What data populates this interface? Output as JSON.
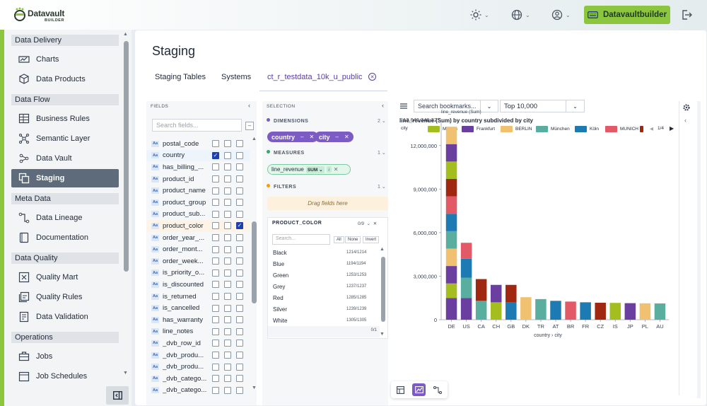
{
  "header": {
    "logo_text": "Datavault",
    "logo_sub": "BUILDER",
    "product_button": "Datavaultbuilder",
    "icons": [
      "sun-icon",
      "globe-icon",
      "user-icon",
      "keyboard-icon",
      "logout-icon"
    ]
  },
  "sidebar": {
    "sections": [
      {
        "title": "Data Delivery",
        "items": [
          {
            "label": "Charts",
            "icon": "chart-icon"
          },
          {
            "label": "Data Products",
            "icon": "box-icon"
          }
        ]
      },
      {
        "title": "Data Flow",
        "items": [
          {
            "label": "Business Rules",
            "icon": "table-icon"
          },
          {
            "label": "Semantic Layer",
            "icon": "network-icon"
          },
          {
            "label": "Data Vault",
            "icon": "vault-icon"
          },
          {
            "label": "Staging",
            "icon": "copy-icon",
            "active": true
          }
        ]
      },
      {
        "title": "Meta Data",
        "items": [
          {
            "label": "Data Lineage",
            "icon": "lineage-icon"
          },
          {
            "label": "Documentation",
            "icon": "book-icon"
          }
        ]
      },
      {
        "title": "Data Quality",
        "items": [
          {
            "label": "Quality Mart",
            "icon": "mart-icon"
          },
          {
            "label": "Quality Rules",
            "icon": "rules-icon"
          },
          {
            "label": "Data Validation",
            "icon": "validation-icon"
          }
        ]
      },
      {
        "title": "Operations",
        "items": [
          {
            "label": "Jobs",
            "icon": "jobs-icon"
          },
          {
            "label": "Job Schedules",
            "icon": "schedule-icon"
          }
        ]
      }
    ]
  },
  "page": {
    "title": "Staging",
    "tabs": [
      "Staging Tables",
      "Systems",
      "ct_r_testdata_10k_u_public"
    ],
    "active_tab": 2
  },
  "fields": {
    "header": "FIELDS",
    "search_placeholder": "Search fields...",
    "type_badge": "Aa",
    "rows": [
      {
        "name": "postal_code",
        "dim": false,
        "mea": false,
        "fil": false
      },
      {
        "name": "country",
        "dim": true,
        "mea": false,
        "fil": false
      },
      {
        "name": "has_billing_...",
        "dim": false,
        "mea": false,
        "fil": false
      },
      {
        "name": "product_id",
        "dim": false,
        "mea": false,
        "fil": false
      },
      {
        "name": "product_name",
        "dim": false,
        "mea": false,
        "fil": false
      },
      {
        "name": "product_group",
        "dim": false,
        "mea": false,
        "fil": false
      },
      {
        "name": "product_sub...",
        "dim": false,
        "mea": false,
        "fil": false
      },
      {
        "name": "product_color",
        "dim": false,
        "mea": false,
        "fil": true
      },
      {
        "name": "order_year_...",
        "dim": false,
        "mea": false,
        "fil": false
      },
      {
        "name": "order_mont...",
        "dim": false,
        "mea": false,
        "fil": false
      },
      {
        "name": "order_week...",
        "dim": false,
        "mea": false,
        "fil": false
      },
      {
        "name": "is_priority_o...",
        "dim": false,
        "mea": false,
        "fil": false
      },
      {
        "name": "is_discounted",
        "dim": false,
        "mea": false,
        "fil": false
      },
      {
        "name": "is_returned",
        "dim": false,
        "mea": false,
        "fil": false
      },
      {
        "name": "is_cancelled",
        "dim": false,
        "mea": false,
        "fil": false
      },
      {
        "name": "has_warranty",
        "dim": false,
        "mea": false,
        "fil": false
      },
      {
        "name": "line_notes",
        "dim": false,
        "mea": false,
        "fil": false
      },
      {
        "name": "_dvb_row_id",
        "dim": false,
        "mea": false,
        "fil": false
      },
      {
        "name": "_dvb_produ...",
        "dim": false,
        "mea": false,
        "fil": false
      },
      {
        "name": "_dvb_produ...",
        "dim": false,
        "mea": false,
        "fil": false
      },
      {
        "name": "_dvb_catego...",
        "dim": false,
        "mea": false,
        "fil": false
      },
      {
        "name": "_dvb_catego...",
        "dim": false,
        "mea": false,
        "fil": false
      }
    ]
  },
  "selection": {
    "header": "SELECTION",
    "dimensions_label": "DIMENSIONS",
    "dimensions_count": "2",
    "dimensions": [
      "country",
      "city"
    ],
    "measures_label": "MEASURES",
    "measures_count": "1",
    "measure": {
      "field": "line_revenue",
      "agg": "SUM",
      "sort": "↓"
    },
    "filters_label": "FILTERS",
    "filters_count": "1",
    "drag_hint": "Drag fields here",
    "filter": {
      "title": "PRODUCT_COLOR",
      "count": "0/9",
      "search_placeholder": "Search...",
      "buttons": [
        "All",
        "None",
        "Invert"
      ],
      "values": [
        {
          "name": "Black",
          "count": "1214/1214"
        },
        {
          "name": "Blue",
          "count": "1194/1194"
        },
        {
          "name": "Green",
          "count": "1253/1253"
        },
        {
          "name": "Grey",
          "count": "1237/1237"
        },
        {
          "name": "Red",
          "count": "1285/1285"
        },
        {
          "name": "Silver",
          "count": "1239/1239"
        },
        {
          "name": "White",
          "count": "1305/1305"
        }
      ],
      "page": "0/1"
    }
  },
  "toolbar": {
    "bookmark_placeholder": "Search bookmarks...",
    "top_value": "Top 10,000"
  },
  "chart_data": {
    "type": "bar",
    "stacked": true,
    "title": "line_revenue (Sum) by country subdivided by city",
    "ylabel": "line_revenue (Sum)",
    "xlabel": "country › city",
    "ymax_label": "13,646,346.22",
    "ylim": [
      0,
      13646346.22
    ],
    "yticks": [
      0,
      3000000,
      6000000,
      9000000,
      12000000
    ],
    "ytick_labels": [
      "0",
      "3,000,000",
      "6,000,000",
      "9,000,000",
      "12,000,000"
    ],
    "legend_title": "city",
    "legend_page": "1/4",
    "legend": [
      {
        "name": "Munich",
        "color": "#a3be1e"
      },
      {
        "name": "Frankfurt",
        "color": "#6b3fa0"
      },
      {
        "name": "BERLIN",
        "color": "#f0c170"
      },
      {
        "name": "München",
        "color": "#5aaea0"
      },
      {
        "name": "Köln",
        "color": "#1d7ab3"
      },
      {
        "name": "MUNICH",
        "color": "#e25a66"
      }
    ],
    "categories": [
      "DE",
      "US",
      "CA",
      "CH",
      "GB",
      "DK",
      "TR",
      "AT",
      "BR",
      "FR",
      "CZ",
      "IS",
      "JP",
      "PL",
      "AU"
    ],
    "bars": [
      {
        "country": "DE",
        "segments": [
          {
            "v": 1500000,
            "c": "#6b3fa0"
          },
          {
            "v": 1000000,
            "c": "#a3be1e"
          },
          {
            "v": 1200000,
            "c": "#6b3fa0"
          },
          {
            "v": 1200000,
            "c": "#f0c170"
          },
          {
            "v": 1200000,
            "c": "#5aaea0"
          },
          {
            "v": 1200000,
            "c": "#1d7ab3"
          },
          {
            "v": 1200000,
            "c": "#e25a66"
          },
          {
            "v": 1200000,
            "c": "#a02810"
          },
          {
            "v": 1200000,
            "c": "#a3be1e"
          },
          {
            "v": 1200000,
            "c": "#6b3fa0"
          },
          {
            "v": 1200000,
            "c": "#f0c170"
          }
        ]
      },
      {
        "country": "US",
        "segments": [
          {
            "v": 1500000,
            "c": "#6b3fa0"
          },
          {
            "v": 1400000,
            "c": "#5aaea0"
          },
          {
            "v": 1300000,
            "c": "#1d7ab3"
          },
          {
            "v": 1100000,
            "c": "#e25a66"
          }
        ]
      },
      {
        "country": "CA",
        "segments": [
          {
            "v": 1300000,
            "c": "#5aaea0"
          },
          {
            "v": 1500000,
            "c": "#a02810"
          }
        ]
      },
      {
        "country": "CH",
        "segments": [
          {
            "v": 1200000,
            "c": "#a3be1e"
          },
          {
            "v": 1200000,
            "c": "#6b3fa0"
          }
        ]
      },
      {
        "country": "GB",
        "segments": [
          {
            "v": 1200000,
            "c": "#1d7ab3"
          },
          {
            "v": 1200000,
            "c": "#a02810"
          }
        ]
      },
      {
        "country": "DK",
        "segments": [
          {
            "v": 1550000,
            "c": "#f0c170"
          }
        ]
      },
      {
        "country": "TR",
        "segments": [
          {
            "v": 1420000,
            "c": "#5aaea0"
          }
        ]
      },
      {
        "country": "AT",
        "segments": [
          {
            "v": 1300000,
            "c": "#1d7ab3"
          }
        ]
      },
      {
        "country": "BR",
        "segments": [
          {
            "v": 1250000,
            "c": "#e25a66"
          }
        ]
      },
      {
        "country": "FR",
        "segments": [
          {
            "v": 1200000,
            "c": "#1d7ab3"
          }
        ]
      },
      {
        "country": "CZ",
        "segments": [
          {
            "v": 1170000,
            "c": "#a02810"
          }
        ]
      },
      {
        "country": "IS",
        "segments": [
          {
            "v": 1160000,
            "c": "#a3be1e"
          }
        ]
      },
      {
        "country": "JP",
        "segments": [
          {
            "v": 1140000,
            "c": "#6b3fa0"
          }
        ]
      },
      {
        "country": "PL",
        "segments": [
          {
            "v": 1130000,
            "c": "#f0c170"
          }
        ]
      },
      {
        "country": "AU",
        "segments": [
          {
            "v": 1120000,
            "c": "#5aaea0"
          }
        ]
      }
    ],
    "grid": false
  }
}
